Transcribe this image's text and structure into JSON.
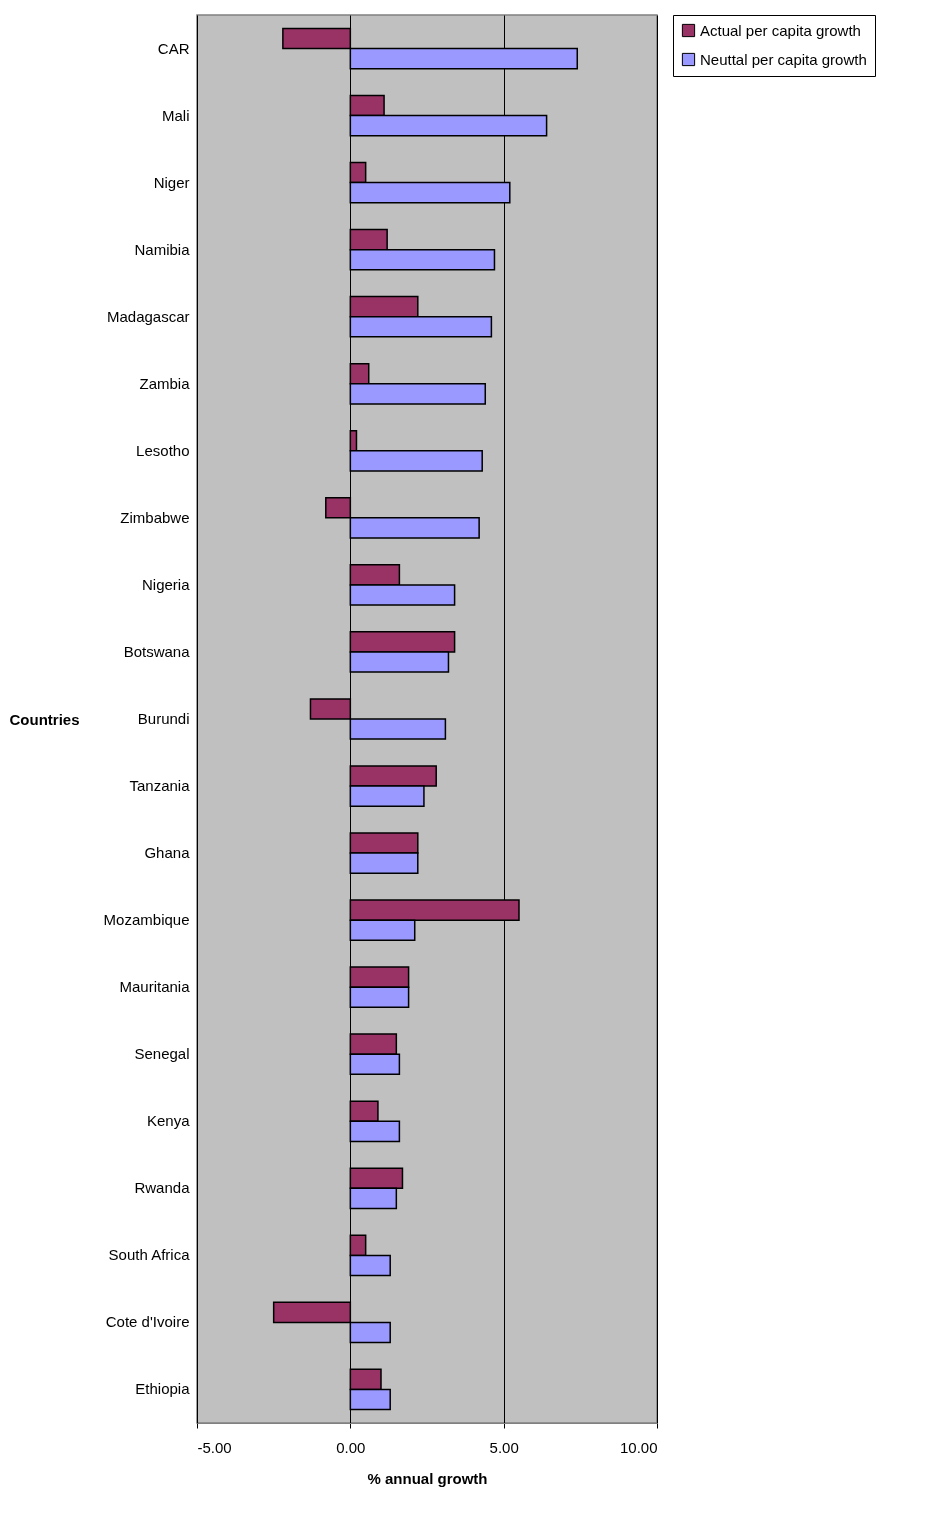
{
  "chart_data": {
    "type": "bar",
    "orientation": "horizontal",
    "xlabel": "% annual growth",
    "ylabel": "Countries",
    "categories": [
      "CAR",
      "Mali",
      "Niger",
      "Namibia",
      "Madagascar",
      "Zambia",
      "Lesotho",
      "Zimbabwe",
      "Nigeria",
      "Botswana",
      "Burundi",
      "Tanzania",
      "Ghana",
      "Mozambique",
      "Mauritania",
      "Senegal",
      "Kenya",
      "Rwanda",
      "South Africa",
      "Cote d'Ivoire",
      "Ethiopia"
    ],
    "series": [
      {
        "name": "Actual per capita growth",
        "color": "#993366",
        "values": [
          -2.2,
          1.1,
          0.5,
          1.2,
          2.2,
          0.6,
          0.2,
          -0.8,
          1.6,
          3.4,
          -1.3,
          2.8,
          2.2,
          5.5,
          1.9,
          1.5,
          0.9,
          1.7,
          0.5,
          -2.5,
          1.0
        ]
      },
      {
        "name": "Neuttal per capita growth",
        "color": "#9999ff",
        "values": [
          7.4,
          6.4,
          5.2,
          4.7,
          4.6,
          4.4,
          4.3,
          4.2,
          3.4,
          3.2,
          3.1,
          2.4,
          2.2,
          2.1,
          1.9,
          1.6,
          1.6,
          1.5,
          1.3,
          1.3,
          1.3
        ]
      }
    ],
    "xlim": [
      -5,
      10
    ],
    "xticks": [
      {
        "value": -5,
        "label": "-5.00"
      },
      {
        "value": 0,
        "label": "0.00"
      },
      {
        "value": 5,
        "label": "5.00"
      },
      {
        "value": 10,
        "label": "10.00"
      }
    ],
    "grid": "x",
    "legend": "right"
  }
}
